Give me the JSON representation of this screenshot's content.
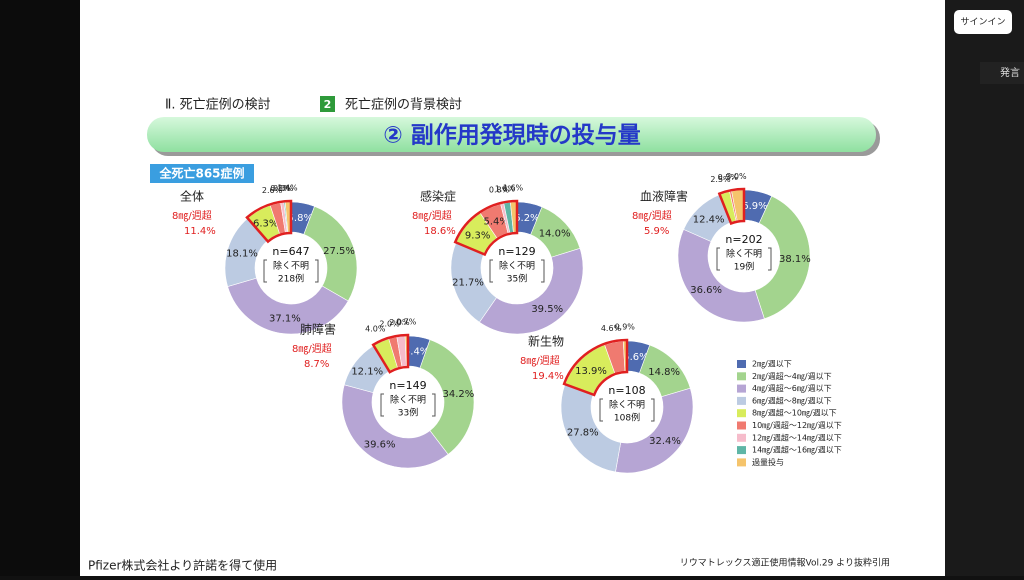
{
  "ui": {
    "sign_in": "サインイン",
    "speak": "発言"
  },
  "slide": {
    "breadcrumb1": "Ⅱ. 死亡症例の検討",
    "breadcrumb_num": "2",
    "breadcrumb2": "死亡症例の背景検討",
    "title": "② 副作用発現時の投与量",
    "tag": "全死亡865症例",
    "footer_left": "Pfizer株式会社より許諾を得て使用",
    "footer_right": "リウマトレックス適正使用情報Vol.29 より抜粋引用"
  },
  "legend": [
    {
      "name": "2㎎/週以下",
      "color": "#4f6bb0"
    },
    {
      "name": "2㎎/週超～4㎎/週以下",
      "color": "#a3d48e"
    },
    {
      "name": "4㎎/週超～6㎎/週以下",
      "color": "#b6a5d4"
    },
    {
      "name": "6㎎/週超～8㎎/週以下",
      "color": "#bccbe2"
    },
    {
      "name": "8㎎/週超～10㎎/週以下",
      "color": "#d8ec5c"
    },
    {
      "name": "10㎎/週超～12㎎/週以下",
      "color": "#f07a70"
    },
    {
      "name": "12㎎/週超～14㎎/週以下",
      "color": "#f6bccb"
    },
    {
      "name": "14㎎/週超～16㎎/週以下",
      "color": "#5fb6a6"
    },
    {
      "name": "過量投与",
      "color": "#f5c46c"
    }
  ],
  "chart_data": [
    {
      "type": "pie",
      "title": "全体",
      "n": "n=647",
      "unknown": "除く不明",
      "unknown_count": "218例",
      "over_label": "8㎎/週超",
      "over_value": "11.4%",
      "values": [
        5.8,
        27.5,
        37.1,
        18.1,
        6.3,
        2.6,
        0.8,
        0.3,
        1.4
      ],
      "value_labels": [
        "5.8%",
        "27.5%",
        "37.1%",
        "18.1%",
        "6.3%",
        "2.6%",
        "0.8%",
        "0.3%",
        "1.4%"
      ]
    },
    {
      "type": "pie",
      "title": "感染症",
      "n": "n=129",
      "unknown": "除く不明",
      "unknown_count": "35例",
      "over_label": "8㎎/週超",
      "over_value": "18.6%",
      "values": [
        6.2,
        14.0,
        39.5,
        21.7,
        9.3,
        5.4,
        0.8,
        1.6,
        1.6
      ],
      "value_labels": [
        "6.2%",
        "14.0%",
        "39.5%",
        "21.7%",
        "9.3%",
        "5.4%",
        "0.8%",
        "1.6%",
        "1.6%"
      ]
    },
    {
      "type": "pie",
      "title": "血液障害",
      "n": "n=202",
      "unknown": "除く不明",
      "unknown_count": "19例",
      "over_label": "8㎎/週超",
      "over_value": "5.9%",
      "values": [
        6.9,
        38.1,
        36.6,
        12.4,
        2.5,
        0.5,
        null,
        null,
        3.0
      ],
      "value_labels": [
        "6.9%",
        "38.1%",
        "36.6%",
        "12.4%",
        "2.5%",
        "0.5%",
        null,
        null,
        "3.0%"
      ]
    },
    {
      "type": "pie",
      "title": "肺障害",
      "n": "n=149",
      "unknown": "除く不明",
      "unknown_count": "33例",
      "over_label": "8㎎/週超",
      "over_value": "8.7%",
      "values": [
        5.4,
        34.2,
        39.6,
        12.1,
        4.0,
        2.0,
        2.0,
        null,
        0.7
      ],
      "value_labels": [
        "5.4%",
        "34.2%",
        "39.6%",
        "12.1%",
        "4.0%",
        "2.0%",
        "2.0%",
        null,
        "0.7%"
      ]
    },
    {
      "type": "pie",
      "title": "新生物",
      "n": "n=108",
      "unknown": "除く不明",
      "unknown_count": "108例",
      "over_label": "8㎎/週超",
      "over_value": "19.4%",
      "values": [
        5.6,
        14.8,
        32.4,
        27.8,
        13.9,
        4.6,
        null,
        null,
        0.9
      ],
      "value_labels": [
        "5.6%",
        "14.8%",
        "32.4%",
        "27.8%",
        "13.9%",
        "4.6%",
        null,
        null,
        "0.9%"
      ]
    }
  ]
}
